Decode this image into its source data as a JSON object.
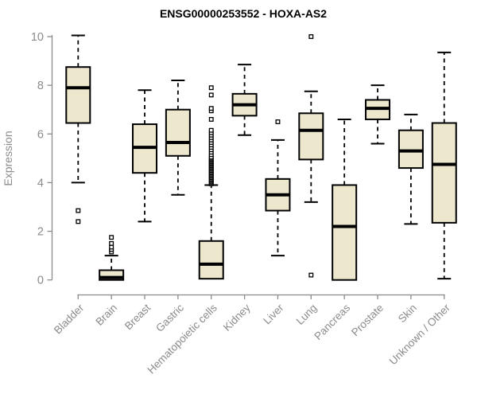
{
  "chart_data": {
    "type": "boxplot",
    "title": "ENSG00000253552 - HOXA-AS2",
    "ylabel": "Expression",
    "xlabel": "",
    "ylim": [
      0,
      10
    ],
    "yticks": [
      0,
      2,
      4,
      6,
      8,
      10
    ],
    "grid": false,
    "legend": "none",
    "box_fill": "#EDE7CE",
    "box_border": "#000000",
    "axis_color": "#8B8B8B",
    "categories": [
      "Bladder",
      "Brain",
      "Breast",
      "Gastric",
      "Hematopoietic cells",
      "Kidney",
      "Liver",
      "Lung",
      "Pancreas",
      "Prostate",
      "Skin",
      "Unknown / Other"
    ],
    "boxes": [
      {
        "category": "Bladder",
        "low": 4.0,
        "q1": 6.45,
        "median": 7.9,
        "q3": 8.75,
        "high": 10.05,
        "outliers": [
          2.4,
          2.85
        ]
      },
      {
        "category": "Brain",
        "low": 0.0,
        "q1": 0.0,
        "median": 0.1,
        "q3": 0.4,
        "high": 1.0,
        "outliers": [
          1.15,
          1.25,
          1.35,
          1.5,
          1.75
        ]
      },
      {
        "category": "Breast",
        "low": 2.4,
        "q1": 4.4,
        "median": 5.45,
        "q3": 6.4,
        "high": 7.8,
        "outliers": []
      },
      {
        "category": "Gastric",
        "low": 3.5,
        "q1": 5.1,
        "median": 5.65,
        "q3": 7.0,
        "high": 8.2,
        "outliers": []
      },
      {
        "category": "Hematopoietic cells",
        "low": 0.05,
        "q1": 0.05,
        "median": 0.65,
        "q3": 1.6,
        "high": 3.9,
        "outliers": [
          3.95,
          4.0,
          4.05,
          4.1,
          4.15,
          4.2,
          4.25,
          4.3,
          4.35,
          4.4,
          4.45,
          4.5,
          4.55,
          4.6,
          4.65,
          4.7,
          4.75,
          4.8,
          4.85,
          4.9,
          4.95,
          5.0,
          5.05,
          5.15,
          5.25,
          5.35,
          5.45,
          5.55,
          5.65,
          5.75,
          5.85,
          5.95,
          6.05,
          6.15,
          6.6,
          6.95,
          7.05,
          7.6,
          7.9
        ]
      },
      {
        "category": "Kidney",
        "low": 5.95,
        "q1": 6.75,
        "median": 7.2,
        "q3": 7.65,
        "high": 8.85,
        "outliers": []
      },
      {
        "category": "Liver",
        "low": 1.0,
        "q1": 2.85,
        "median": 3.5,
        "q3": 4.15,
        "high": 5.75,
        "outliers": [
          6.5
        ]
      },
      {
        "category": "Lung",
        "low": 3.2,
        "q1": 4.95,
        "median": 6.15,
        "q3": 6.85,
        "high": 7.75,
        "outliers": [
          0.2,
          10.0
        ]
      },
      {
        "category": "Pancreas",
        "low": 0.0,
        "q1": 0.0,
        "median": 2.2,
        "q3": 3.9,
        "high": 6.6,
        "outliers": []
      },
      {
        "category": "Prostate",
        "low": 5.6,
        "q1": 6.6,
        "median": 7.05,
        "q3": 7.4,
        "high": 8.0,
        "outliers": []
      },
      {
        "category": "Skin",
        "low": 2.3,
        "q1": 4.6,
        "median": 5.3,
        "q3": 6.15,
        "high": 6.8,
        "outliers": []
      },
      {
        "category": "Unknown / Other",
        "low": 0.05,
        "q1": 2.35,
        "median": 4.75,
        "q3": 6.45,
        "high": 9.35,
        "outliers": []
      }
    ]
  }
}
